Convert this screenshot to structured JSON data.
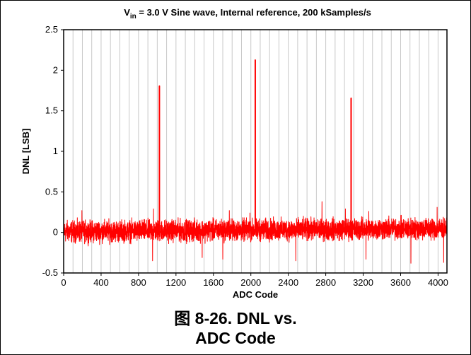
{
  "chart_data": {
    "type": "line",
    "title": {
      "prefix": "V",
      "subscript": "in",
      "rest": " = 3.0 V Sine wave, Internal reference, 200 kSamples/s"
    },
    "xlabel": "ADC Code",
    "ylabel": "DNL [LSB]",
    "xlim": [
      0,
      4095
    ],
    "ylim": [
      -0.5,
      2.5
    ],
    "x_ticks": [
      0,
      400,
      800,
      1200,
      1600,
      2000,
      2400,
      2800,
      3200,
      3600,
      4000
    ],
    "x_tick_labels": [
      "0",
      "400",
      "800",
      "1200",
      "1600",
      "2000",
      "2400",
      "2800",
      "3200",
      "3600",
      "4000"
    ],
    "y_ticks": [
      -0.5,
      0,
      0.5,
      1,
      1.5,
      2,
      2.5
    ],
    "y_tick_labels": [
      "-0.5",
      "0",
      "0.5",
      "1",
      "1.5",
      "2",
      "2.5"
    ],
    "grid": {
      "vertical": true,
      "horizontal": false,
      "vertical_step": 100
    },
    "series": [
      {
        "color": "#ff0000",
        "noise_band": {
          "low": -0.18,
          "high": 0.2
        },
        "spikes": [
          {
            "x": 1023,
            "y": 1.81
          },
          {
            "x": 2047,
            "y": 2.13
          },
          {
            "x": 3071,
            "y": 1.66
          }
        ],
        "minor_peaks": [
          {
            "x": 195,
            "y": 0.27
          },
          {
            "x": 960,
            "y": 0.29
          },
          {
            "x": 1770,
            "y": 0.27
          },
          {
            "x": 1990,
            "y": 0.24
          },
          {
            "x": 2760,
            "y": 0.38
          },
          {
            "x": 3010,
            "y": 0.29
          },
          {
            "x": 3260,
            "y": 0.26
          },
          {
            "x": 3990,
            "y": 0.31
          }
        ],
        "minor_troughs": [
          {
            "x": 950,
            "y": -0.35
          },
          {
            "x": 1480,
            "y": -0.31
          },
          {
            "x": 1700,
            "y": -0.33
          },
          {
            "x": 2480,
            "y": -0.35
          },
          {
            "x": 3230,
            "y": -0.33
          },
          {
            "x": 3710,
            "y": -0.38
          },
          {
            "x": 4060,
            "y": -0.37
          }
        ]
      }
    ]
  },
  "caption": {
    "line1": "图 8-26. DNL vs.",
    "line2": "ADC Code"
  }
}
